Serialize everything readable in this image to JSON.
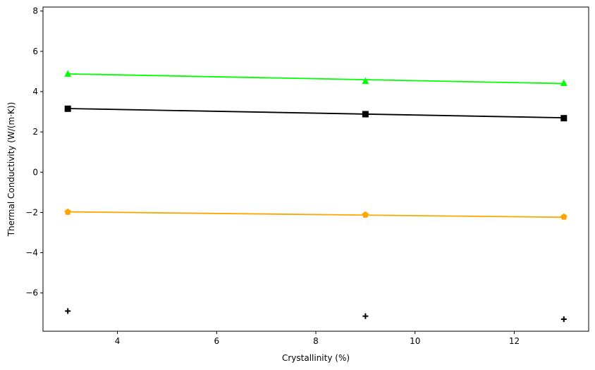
{
  "chart_data": {
    "type": "line",
    "title": "",
    "xlabel": "Crystallinity (%)",
    "ylabel": "Thermal Conductivity (W/(m·K))",
    "xlim": [
      2.5,
      13.5
    ],
    "ylim": [
      -7.9,
      8.2
    ],
    "xticks": [
      4,
      6,
      8,
      10,
      12
    ],
    "yticks": [
      -6,
      -4,
      -2,
      0,
      2,
      4,
      6,
      8
    ],
    "grid": false,
    "legend": "none",
    "series": [
      {
        "color": "#00ff00",
        "marker": "triangle",
        "line": true,
        "points": [
          [
            3,
            4.88
          ],
          [
            9,
            4.52
          ],
          [
            13,
            4.42
          ]
        ],
        "fit": [
          [
            3,
            4.88
          ],
          [
            13,
            4.4
          ]
        ]
      },
      {
        "color": "#000000",
        "marker": "square",
        "line": true,
        "points": [
          [
            3,
            3.15
          ],
          [
            9,
            2.88
          ],
          [
            13,
            2.68
          ]
        ],
        "fit": [
          [
            3,
            3.16
          ],
          [
            13,
            2.7
          ]
        ]
      },
      {
        "color": "#ffa500",
        "marker": "pentagon",
        "line": true,
        "points": [
          [
            3,
            -1.98
          ],
          [
            9,
            -2.12
          ],
          [
            13,
            -2.22
          ]
        ],
        "fit": [
          [
            3,
            -1.97
          ],
          [
            13,
            -2.24
          ]
        ]
      },
      {
        "color": "#000000",
        "marker": "plus",
        "line": false,
        "points": [
          [
            3,
            -6.9
          ],
          [
            9,
            -7.15
          ],
          [
            13,
            -7.3
          ]
        ]
      }
    ]
  }
}
